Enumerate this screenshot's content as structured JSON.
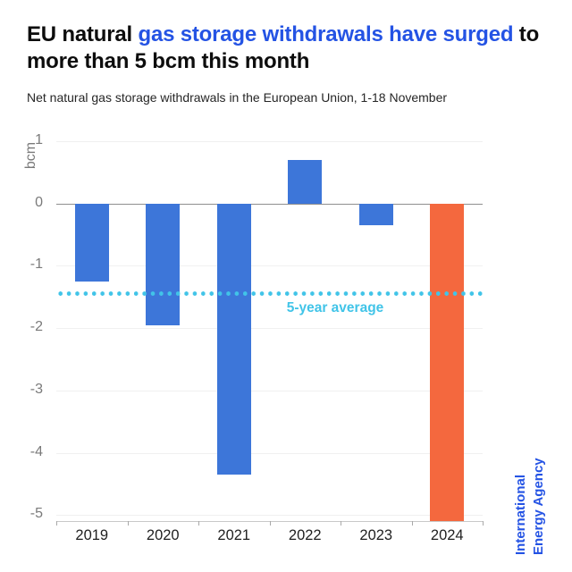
{
  "header": {
    "title_segments": [
      {
        "text": "EU natural ",
        "color": "#0d0d0d"
      },
      {
        "text": "gas storage withdrawals have surged",
        "color": "#2453e4"
      },
      {
        "text": " to more than 5 bcm this month",
        "color": "#0d0d0d"
      }
    ],
    "subtitle": "Net natural gas storage withdrawals in the European Union, 1-18 November"
  },
  "chart_data": {
    "type": "bar",
    "categories": [
      "2019",
      "2020",
      "2021",
      "2022",
      "2023",
      "2024"
    ],
    "values": [
      -1.25,
      -1.95,
      -4.35,
      0.7,
      -0.35,
      -5.1
    ],
    "bar_colors": [
      "#3d76d9",
      "#3d76d9",
      "#3d76d9",
      "#3d76d9",
      "#3d76d9",
      "#f4683e"
    ],
    "title": "EU natural gas storage withdrawals have surged to more than 5 bcm this month",
    "xlabel": "",
    "ylabel": "bcm",
    "yticks": [
      1,
      0,
      -1,
      -2,
      -3,
      -4,
      -5
    ],
    "ylim": [
      -5.1,
      1.2
    ],
    "grid": "horizontal-light",
    "reference_line": {
      "value": -1.45,
      "label": "5-year average",
      "color": "#41c4e8",
      "style": "dotted"
    }
  },
  "credit": {
    "lines": [
      "International",
      "Energy Agency"
    ],
    "color": "#2453e4"
  },
  "colors": {
    "bar_blue": "#3d76d9",
    "bar_orange": "#f4683e",
    "accent_blue": "#2453e4",
    "reference_cyan": "#41c4e8",
    "axis_gray": "#8f8f8f",
    "tick_label_gray": "#7a7a7a"
  }
}
